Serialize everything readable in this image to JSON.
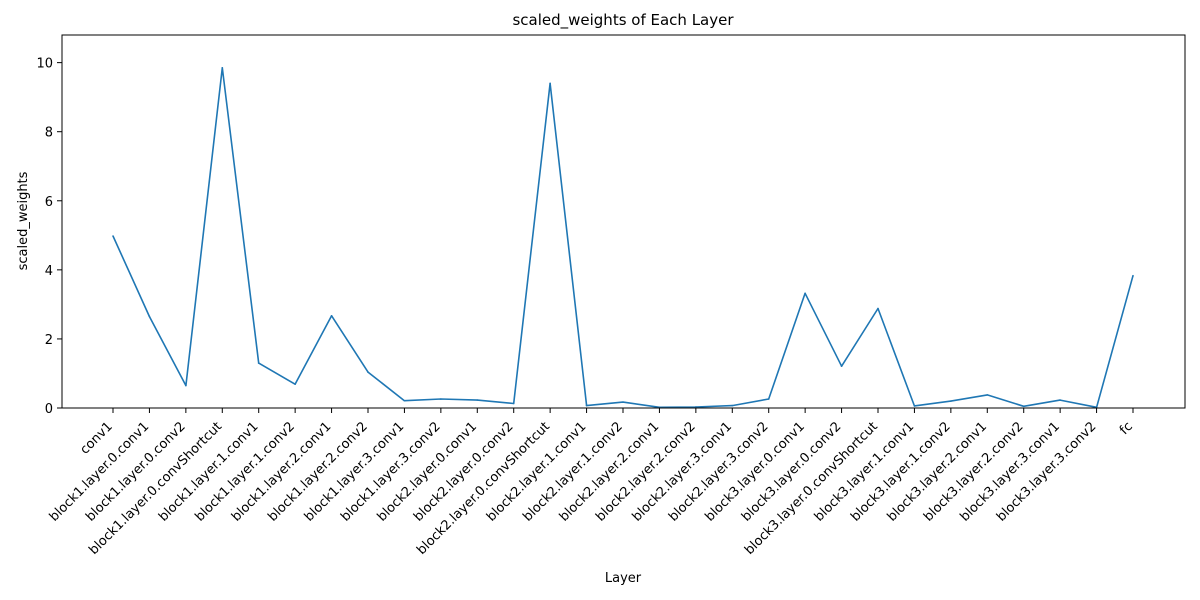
{
  "chart_data": {
    "type": "line",
    "title": "scaled_weights of Each Layer",
    "xlabel": "Layer",
    "ylabel": "scaled_weights",
    "ylim": [
      0,
      10.8
    ],
    "yticks": [
      0,
      2,
      4,
      6,
      8,
      10
    ],
    "grid": false,
    "categories": [
      "conv1",
      "block1.layer.0.conv1",
      "block1.layer.0.conv2",
      "block1.layer.0.convShortcut",
      "block1.layer.1.conv1",
      "block1.layer.1.conv2",
      "block1.layer.2.conv1",
      "block1.layer.2.conv2",
      "block1.layer.3.conv1",
      "block1.layer.3.conv2",
      "block2.layer.0.conv1",
      "block2.layer.0.conv2",
      "block2.layer.0.convShortcut",
      "block2.layer.1.conv1",
      "block2.layer.1.conv2",
      "block2.layer.2.conv1",
      "block2.layer.2.conv2",
      "block2.layer.3.conv1",
      "block2.layer.3.conv2",
      "block3.layer.0.conv1",
      "block3.layer.0.conv2",
      "block3.layer.0.convShortcut",
      "block3.layer.1.conv1",
      "block3.layer.1.conv2",
      "block3.layer.2.conv1",
      "block3.layer.2.conv2",
      "block3.layer.3.conv1",
      "block3.layer.3.conv2",
      "fc"
    ],
    "series": [
      {
        "color": "#1f77b4",
        "values": [
          4.98,
          2.65,
          0.65,
          9.85,
          1.3,
          0.69,
          2.67,
          1.04,
          0.21,
          0.26,
          0.23,
          0.13,
          9.4,
          0.07,
          0.17,
          0.02,
          0.03,
          0.07,
          0.26,
          3.32,
          1.21,
          2.88,
          0.06,
          0.2,
          0.38,
          0.05,
          0.23,
          0.02,
          3.83
        ]
      }
    ]
  }
}
